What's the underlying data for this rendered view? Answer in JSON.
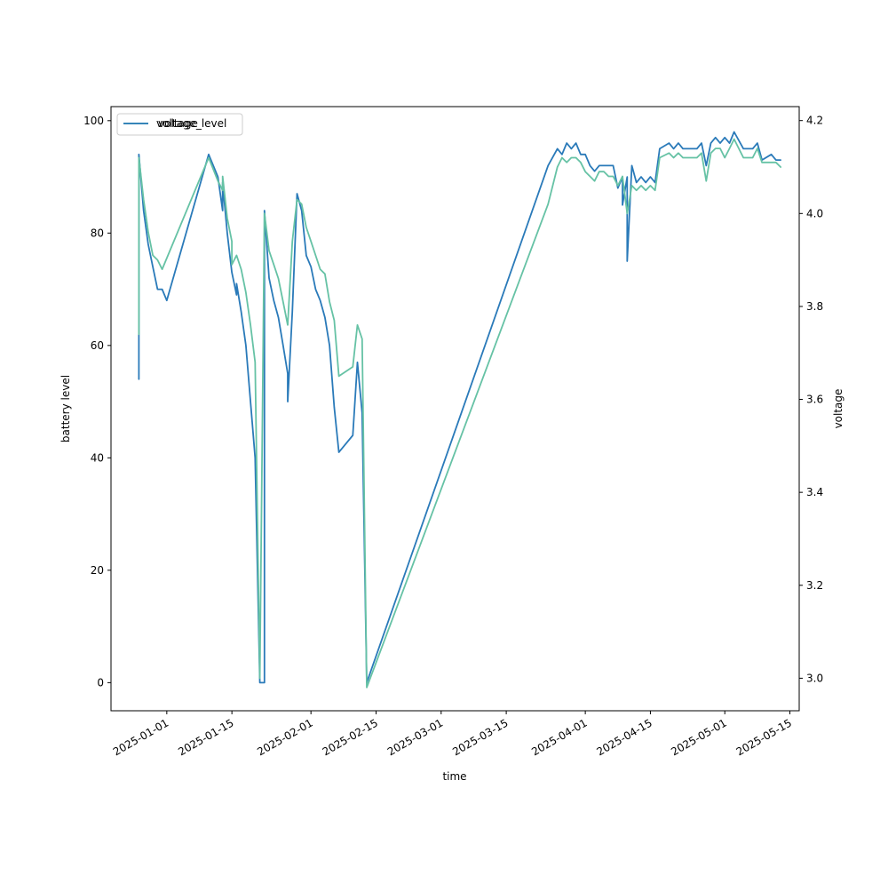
{
  "chart_data": {
    "type": "line",
    "xlabel": "time",
    "ylabel_left": "battery level",
    "ylabel_right": "voltage",
    "x_ticks": [
      "2025-01-01",
      "2025-01-15",
      "2025-02-01",
      "2025-02-15",
      "2025-03-01",
      "2025-03-15",
      "2025-04-01",
      "2025-04-15",
      "2025-05-01",
      "2025-05-15"
    ],
    "ylim_left": [
      -5,
      102.5
    ],
    "yticks_left": [
      0,
      20,
      40,
      60,
      80,
      100
    ],
    "ylim_right": [
      2.93,
      4.23
    ],
    "yticks_right": [
      "3.0",
      "3.2",
      "3.4",
      "3.6",
      "3.8",
      "4.0",
      "4.2"
    ],
    "xlim": [
      "2024-12-20",
      "2025-05-17"
    ],
    "grid": false,
    "legend": {
      "placement": "upper-left",
      "entries": [
        {
          "label": "voltage_level",
          "color": "#2a7ab9"
        },
        {
          "label": "voltage",
          "color": "#66c2a5"
        }
      ]
    },
    "series": [
      {
        "name": "voltage_level",
        "axis": "left",
        "color": "#2a7ab9",
        "points": [
          [
            "2024-12-26",
            54
          ],
          [
            "2024-12-26",
            64
          ],
          [
            "2024-12-26",
            94
          ],
          [
            "2024-12-27",
            84
          ],
          [
            "2024-12-28",
            78
          ],
          [
            "2024-12-29",
            74
          ],
          [
            "2024-12-30",
            70
          ],
          [
            "2024-12-31",
            70
          ],
          [
            "2025-01-01",
            68
          ],
          [
            "2025-01-10",
            94
          ],
          [
            "2025-01-12",
            90
          ],
          [
            "2025-01-13",
            84
          ],
          [
            "2025-01-13",
            89
          ],
          [
            "2025-01-14",
            80
          ],
          [
            "2025-01-15",
            73
          ],
          [
            "2025-01-15",
            73
          ],
          [
            "2025-01-16",
            69
          ],
          [
            "2025-01-16",
            71
          ],
          [
            "2025-01-17",
            66
          ],
          [
            "2025-01-18",
            60
          ],
          [
            "2025-01-19",
            50
          ],
          [
            "2025-01-20",
            40
          ],
          [
            "2025-01-21",
            0
          ],
          [
            "2025-01-22",
            0
          ],
          [
            "2025-01-22",
            10
          ],
          [
            "2025-01-22",
            84
          ],
          [
            "2025-01-23",
            72
          ],
          [
            "2025-01-24",
            68
          ],
          [
            "2025-01-25",
            65
          ],
          [
            "2025-01-26",
            60
          ],
          [
            "2025-01-27",
            55
          ],
          [
            "2025-01-27",
            50
          ],
          [
            "2025-01-28",
            66
          ],
          [
            "2025-01-29",
            87
          ],
          [
            "2025-01-30",
            84
          ],
          [
            "2025-01-31",
            76
          ],
          [
            "2025-02-01",
            74
          ],
          [
            "2025-02-02",
            70
          ],
          [
            "2025-02-03",
            68
          ],
          [
            "2025-02-04",
            65
          ],
          [
            "2025-02-05",
            60
          ],
          [
            "2025-02-06",
            49
          ],
          [
            "2025-02-07",
            41
          ],
          [
            "2025-02-10",
            44
          ],
          [
            "2025-02-11",
            57
          ],
          [
            "2025-02-12",
            48
          ],
          [
            "2025-02-13",
            0
          ],
          [
            "2025-03-24",
            92
          ],
          [
            "2025-03-26",
            95
          ],
          [
            "2025-03-27",
            94
          ],
          [
            "2025-03-28",
            96
          ],
          [
            "2025-03-29",
            95
          ],
          [
            "2025-03-30",
            96
          ],
          [
            "2025-03-31",
            94
          ],
          [
            "2025-04-01",
            94
          ],
          [
            "2025-04-02",
            92
          ],
          [
            "2025-04-03",
            91
          ],
          [
            "2025-04-04",
            92
          ],
          [
            "2025-04-05",
            92
          ],
          [
            "2025-04-06",
            92
          ],
          [
            "2025-04-07",
            92
          ],
          [
            "2025-04-08",
            88
          ],
          [
            "2025-04-09",
            90
          ],
          [
            "2025-04-09",
            85
          ],
          [
            "2025-04-10",
            90
          ],
          [
            "2025-04-10",
            75
          ],
          [
            "2025-04-11",
            92
          ],
          [
            "2025-04-12",
            89
          ],
          [
            "2025-04-13",
            90
          ],
          [
            "2025-04-14",
            89
          ],
          [
            "2025-04-15",
            90
          ],
          [
            "2025-04-16",
            89
          ],
          [
            "2025-04-17",
            95
          ],
          [
            "2025-04-19",
            96
          ],
          [
            "2025-04-20",
            95
          ],
          [
            "2025-04-21",
            96
          ],
          [
            "2025-04-22",
            95
          ],
          [
            "2025-04-24",
            95
          ],
          [
            "2025-04-25",
            95
          ],
          [
            "2025-04-26",
            96
          ],
          [
            "2025-04-27",
            92
          ],
          [
            "2025-04-28",
            96
          ],
          [
            "2025-04-29",
            97
          ],
          [
            "2025-04-30",
            96
          ],
          [
            "2025-05-01",
            97
          ],
          [
            "2025-05-02",
            96
          ],
          [
            "2025-05-03",
            98
          ],
          [
            "2025-05-05",
            95
          ],
          [
            "2025-05-07",
            95
          ],
          [
            "2025-05-08",
            96
          ],
          [
            "2025-05-09",
            93
          ],
          [
            "2025-05-11",
            94
          ],
          [
            "2025-05-12",
            93
          ],
          [
            "2025-05-13",
            93
          ]
        ]
      },
      {
        "name": "voltage",
        "axis": "right",
        "color": "#66c2a5",
        "points": [
          [
            "2024-12-26",
            3.74
          ],
          [
            "2024-12-26",
            4.12
          ],
          [
            "2024-12-27",
            4.03
          ],
          [
            "2024-12-28",
            3.96
          ],
          [
            "2024-12-29",
            3.91
          ],
          [
            "2024-12-30",
            3.9
          ],
          [
            "2024-12-31",
            3.88
          ],
          [
            "2025-01-10",
            4.12
          ],
          [
            "2025-01-12",
            4.07
          ],
          [
            "2025-01-13",
            4.05
          ],
          [
            "2025-01-13",
            4.08
          ],
          [
            "2025-01-14",
            3.99
          ],
          [
            "2025-01-15",
            3.94
          ],
          [
            "2025-01-15",
            3.89
          ],
          [
            "2025-01-16",
            3.91
          ],
          [
            "2025-01-17",
            3.88
          ],
          [
            "2025-01-18",
            3.83
          ],
          [
            "2025-01-19",
            3.76
          ],
          [
            "2025-01-20",
            3.68
          ],
          [
            "2025-01-21",
            3.0
          ],
          [
            "2025-01-22",
            4.0
          ],
          [
            "2025-01-23",
            3.92
          ],
          [
            "2025-01-24",
            3.89
          ],
          [
            "2025-01-25",
            3.86
          ],
          [
            "2025-01-26",
            3.81
          ],
          [
            "2025-01-27",
            3.76
          ],
          [
            "2025-01-28",
            3.94
          ],
          [
            "2025-01-29",
            4.03
          ],
          [
            "2025-01-30",
            4.02
          ],
          [
            "2025-01-31",
            3.97
          ],
          [
            "2025-02-01",
            3.94
          ],
          [
            "2025-02-02",
            3.91
          ],
          [
            "2025-02-03",
            3.88
          ],
          [
            "2025-02-04",
            3.87
          ],
          [
            "2025-02-05",
            3.81
          ],
          [
            "2025-02-06",
            3.77
          ],
          [
            "2025-02-07",
            3.65
          ],
          [
            "2025-02-10",
            3.67
          ],
          [
            "2025-02-11",
            3.76
          ],
          [
            "2025-02-12",
            3.73
          ],
          [
            "2025-02-13",
            2.98
          ],
          [
            "2025-03-24",
            4.02
          ],
          [
            "2025-03-26",
            4.1
          ],
          [
            "2025-03-27",
            4.12
          ],
          [
            "2025-03-28",
            4.11
          ],
          [
            "2025-03-29",
            4.12
          ],
          [
            "2025-03-30",
            4.12
          ],
          [
            "2025-03-31",
            4.11
          ],
          [
            "2025-04-01",
            4.09
          ],
          [
            "2025-04-02",
            4.08
          ],
          [
            "2025-04-03",
            4.07
          ],
          [
            "2025-04-04",
            4.09
          ],
          [
            "2025-04-05",
            4.09
          ],
          [
            "2025-04-06",
            4.08
          ],
          [
            "2025-04-07",
            4.08
          ],
          [
            "2025-04-08",
            4.06
          ],
          [
            "2025-04-09",
            4.08
          ],
          [
            "2025-04-10",
            4.0
          ],
          [
            "2025-04-11",
            4.06
          ],
          [
            "2025-04-12",
            4.05
          ],
          [
            "2025-04-13",
            4.06
          ],
          [
            "2025-04-14",
            4.05
          ],
          [
            "2025-04-15",
            4.06
          ],
          [
            "2025-04-16",
            4.05
          ],
          [
            "2025-04-17",
            4.12
          ],
          [
            "2025-04-19",
            4.13
          ],
          [
            "2025-04-20",
            4.12
          ],
          [
            "2025-04-21",
            4.13
          ],
          [
            "2025-04-22",
            4.12
          ],
          [
            "2025-04-24",
            4.12
          ],
          [
            "2025-04-25",
            4.12
          ],
          [
            "2025-04-26",
            4.13
          ],
          [
            "2025-04-27",
            4.07
          ],
          [
            "2025-04-28",
            4.13
          ],
          [
            "2025-04-29",
            4.14
          ],
          [
            "2025-04-30",
            4.14
          ],
          [
            "2025-05-01",
            4.12
          ],
          [
            "2025-05-02",
            4.14
          ],
          [
            "2025-05-03",
            4.16
          ],
          [
            "2025-05-05",
            4.12
          ],
          [
            "2025-05-07",
            4.12
          ],
          [
            "2025-05-08",
            4.14
          ],
          [
            "2025-05-09",
            4.11
          ],
          [
            "2025-05-11",
            4.11
          ],
          [
            "2025-05-12",
            4.11
          ],
          [
            "2025-05-13",
            4.1
          ]
        ]
      }
    ]
  }
}
